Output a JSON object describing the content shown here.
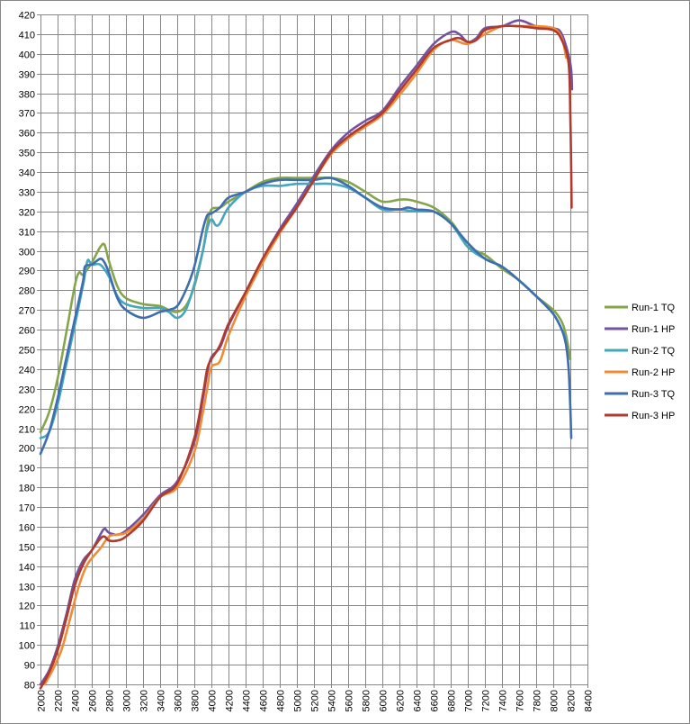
{
  "chart_data": {
    "type": "line",
    "title": "",
    "xlabel": "",
    "ylabel": "",
    "xlim": [
      2000,
      8400
    ],
    "ylim": [
      80,
      420
    ],
    "x_ticks": [
      2000,
      2200,
      2400,
      2600,
      2800,
      3000,
      3200,
      3400,
      3600,
      3800,
      4000,
      4200,
      4400,
      4600,
      4800,
      5000,
      5200,
      5400,
      5600,
      5800,
      6000,
      6200,
      6400,
      6600,
      6800,
      7000,
      7200,
      7400,
      7600,
      7800,
      8000,
      8200,
      8400
    ],
    "y_ticks": [
      80,
      90,
      100,
      110,
      120,
      130,
      140,
      150,
      160,
      170,
      180,
      190,
      200,
      210,
      220,
      230,
      240,
      250,
      260,
      270,
      280,
      290,
      300,
      310,
      320,
      330,
      340,
      350,
      360,
      370,
      380,
      390,
      400,
      410,
      420
    ],
    "grid": true,
    "legend_position": "right",
    "series": [
      {
        "name": "Run-1 TQ",
        "color": "#86a54b",
        "points": [
          [
            2000,
            208
          ],
          [
            2100,
            218
          ],
          [
            2200,
            235
          ],
          [
            2300,
            258
          ],
          [
            2400,
            282
          ],
          [
            2450,
            289
          ],
          [
            2500,
            288
          ],
          [
            2600,
            294
          ],
          [
            2700,
            302
          ],
          [
            2750,
            303
          ],
          [
            2800,
            295
          ],
          [
            2900,
            282
          ],
          [
            3000,
            276
          ],
          [
            3200,
            273
          ],
          [
            3400,
            272
          ],
          [
            3500,
            270
          ],
          [
            3600,
            269
          ],
          [
            3700,
            272
          ],
          [
            3800,
            282
          ],
          [
            3900,
            300
          ],
          [
            3950,
            313
          ],
          [
            4000,
            321
          ],
          [
            4100,
            322
          ],
          [
            4200,
            325
          ],
          [
            4400,
            330
          ],
          [
            4600,
            335
          ],
          [
            4800,
            337
          ],
          [
            5000,
            337
          ],
          [
            5200,
            337
          ],
          [
            5400,
            337
          ],
          [
            5600,
            335
          ],
          [
            5800,
            330
          ],
          [
            6000,
            325
          ],
          [
            6200,
            326
          ],
          [
            6300,
            326
          ],
          [
            6400,
            325
          ],
          [
            6600,
            322
          ],
          [
            6800,
            315
          ],
          [
            6900,
            309
          ],
          [
            7000,
            302
          ],
          [
            7200,
            298
          ],
          [
            7400,
            291
          ],
          [
            7600,
            285
          ],
          [
            7800,
            277
          ],
          [
            8000,
            270
          ],
          [
            8100,
            264
          ],
          [
            8150,
            257
          ],
          [
            8200,
            245
          ]
        ]
      },
      {
        "name": "Run-1 HP",
        "color": "#7153a1",
        "points": [
          [
            2000,
            80
          ],
          [
            2100,
            87
          ],
          [
            2200,
            99
          ],
          [
            2300,
            115
          ],
          [
            2400,
            133
          ],
          [
            2500,
            143
          ],
          [
            2600,
            148
          ],
          [
            2700,
            156
          ],
          [
            2750,
            159
          ],
          [
            2800,
            157
          ],
          [
            2900,
            156
          ],
          [
            3000,
            158
          ],
          [
            3200,
            166
          ],
          [
            3400,
            176
          ],
          [
            3600,
            183
          ],
          [
            3800,
            203
          ],
          [
            3900,
            225
          ],
          [
            3950,
            238
          ],
          [
            4000,
            246
          ],
          [
            4100,
            251
          ],
          [
            4200,
            262
          ],
          [
            4400,
            279
          ],
          [
            4600,
            296
          ],
          [
            4800,
            311
          ],
          [
            5000,
            324
          ],
          [
            5200,
            338
          ],
          [
            5400,
            351
          ],
          [
            5600,
            360
          ],
          [
            5800,
            366
          ],
          [
            6000,
            371
          ],
          [
            6200,
            383
          ],
          [
            6400,
            394
          ],
          [
            6600,
            405
          ],
          [
            6800,
            411
          ],
          [
            6900,
            410
          ],
          [
            7000,
            406
          ],
          [
            7100,
            408
          ],
          [
            7200,
            413
          ],
          [
            7400,
            414
          ],
          [
            7600,
            417
          ],
          [
            7800,
            414
          ],
          [
            8000,
            413
          ],
          [
            8100,
            410
          ],
          [
            8200,
            395
          ],
          [
            8220,
            382
          ]
        ]
      },
      {
        "name": "Run-2 TQ",
        "color": "#45a6c0",
        "points": [
          [
            2000,
            205
          ],
          [
            2100,
            208
          ],
          [
            2200,
            222
          ],
          [
            2300,
            242
          ],
          [
            2400,
            262
          ],
          [
            2500,
            283
          ],
          [
            2550,
            295
          ],
          [
            2600,
            293
          ],
          [
            2700,
            293
          ],
          [
            2800,
            287
          ],
          [
            2900,
            277
          ],
          [
            3000,
            273
          ],
          [
            3200,
            271
          ],
          [
            3400,
            271
          ],
          [
            3500,
            269
          ],
          [
            3600,
            266
          ],
          [
            3700,
            270
          ],
          [
            3800,
            283
          ],
          [
            3900,
            300
          ],
          [
            3950,
            311
          ],
          [
            4000,
            316
          ],
          [
            4050,
            313
          ],
          [
            4100,
            314
          ],
          [
            4200,
            322
          ],
          [
            4400,
            330
          ],
          [
            4600,
            333
          ],
          [
            4800,
            333
          ],
          [
            5000,
            334
          ],
          [
            5200,
            334
          ],
          [
            5400,
            334
          ],
          [
            5600,
            332
          ],
          [
            5800,
            327
          ],
          [
            6000,
            321
          ],
          [
            6200,
            321
          ],
          [
            6400,
            320
          ],
          [
            6600,
            320
          ],
          [
            6800,
            314
          ],
          [
            7000,
            302
          ],
          [
            7200,
            296
          ],
          [
            7400,
            292
          ],
          [
            7600,
            285
          ],
          [
            7800,
            277
          ],
          [
            8000,
            268
          ],
          [
            8100,
            260
          ],
          [
            8150,
            255
          ]
        ]
      },
      {
        "name": "Run-2 HP",
        "color": "#f08c36",
        "points": [
          [
            2050,
            80
          ],
          [
            2150,
            88
          ],
          [
            2250,
            98
          ],
          [
            2350,
            114
          ],
          [
            2450,
            130
          ],
          [
            2550,
            141
          ],
          [
            2700,
            149
          ],
          [
            2800,
            155
          ],
          [
            2900,
            156
          ],
          [
            3000,
            157
          ],
          [
            3200,
            164
          ],
          [
            3400,
            175
          ],
          [
            3600,
            180
          ],
          [
            3800,
            198
          ],
          [
            3900,
            218
          ],
          [
            3950,
            230
          ],
          [
            4000,
            241
          ],
          [
            4100,
            244
          ],
          [
            4200,
            257
          ],
          [
            4400,
            277
          ],
          [
            4600,
            294
          ],
          [
            4800,
            309
          ],
          [
            5000,
            322
          ],
          [
            5200,
            336
          ],
          [
            5400,
            349
          ],
          [
            5600,
            357
          ],
          [
            5800,
            363
          ],
          [
            6000,
            369
          ],
          [
            6200,
            379
          ],
          [
            6400,
            390
          ],
          [
            6600,
            402
          ],
          [
            6800,
            407
          ],
          [
            7000,
            405
          ],
          [
            7200,
            410
          ],
          [
            7400,
            414
          ],
          [
            7600,
            414
          ],
          [
            7800,
            414
          ],
          [
            8000,
            413
          ],
          [
            8100,
            408
          ],
          [
            8150,
            398
          ]
        ]
      },
      {
        "name": "Run-3 TQ",
        "color": "#3e6eae",
        "points": [
          [
            2000,
            197
          ],
          [
            2100,
            208
          ],
          [
            2200,
            225
          ],
          [
            2300,
            245
          ],
          [
            2400,
            265
          ],
          [
            2500,
            285
          ],
          [
            2520,
            292
          ],
          [
            2600,
            293
          ],
          [
            2700,
            296
          ],
          [
            2750,
            294
          ],
          [
            2800,
            289
          ],
          [
            2900,
            276
          ],
          [
            3000,
            270
          ],
          [
            3200,
            266
          ],
          [
            3400,
            269
          ],
          [
            3500,
            270
          ],
          [
            3600,
            272
          ],
          [
            3700,
            280
          ],
          [
            3800,
            292
          ],
          [
            3900,
            311
          ],
          [
            3950,
            318
          ],
          [
            4000,
            319
          ],
          [
            4100,
            322
          ],
          [
            4200,
            327
          ],
          [
            4400,
            330
          ],
          [
            4600,
            334
          ],
          [
            4800,
            336
          ],
          [
            5000,
            336
          ],
          [
            5200,
            336
          ],
          [
            5400,
            337
          ],
          [
            5600,
            333
          ],
          [
            5800,
            327
          ],
          [
            6000,
            322
          ],
          [
            6200,
            321
          ],
          [
            6300,
            322
          ],
          [
            6400,
            321
          ],
          [
            6600,
            320
          ],
          [
            6800,
            314
          ],
          [
            7000,
            304
          ],
          [
            7200,
            296
          ],
          [
            7400,
            292
          ],
          [
            7600,
            285
          ],
          [
            7800,
            277
          ],
          [
            8000,
            268
          ],
          [
            8100,
            260
          ],
          [
            8150,
            252
          ],
          [
            8180,
            240
          ],
          [
            8200,
            220
          ],
          [
            8210,
            205
          ]
        ]
      },
      {
        "name": "Run-3 HP",
        "color": "#b03a2e",
        "points": [
          [
            2000,
            78
          ],
          [
            2100,
            86
          ],
          [
            2200,
            97
          ],
          [
            2300,
            113
          ],
          [
            2400,
            130
          ],
          [
            2500,
            141
          ],
          [
            2600,
            148
          ],
          [
            2700,
            154
          ],
          [
            2750,
            155
          ],
          [
            2800,
            153
          ],
          [
            2900,
            153
          ],
          [
            3000,
            155
          ],
          [
            3200,
            163
          ],
          [
            3400,
            175
          ],
          [
            3600,
            182
          ],
          [
            3800,
            205
          ],
          [
            3900,
            227
          ],
          [
            3950,
            240
          ],
          [
            4000,
            245
          ],
          [
            4100,
            252
          ],
          [
            4200,
            263
          ],
          [
            4400,
            279
          ],
          [
            4600,
            296
          ],
          [
            4800,
            310
          ],
          [
            5000,
            322
          ],
          [
            5200,
            336
          ],
          [
            5400,
            350
          ],
          [
            5600,
            358
          ],
          [
            5800,
            364
          ],
          [
            6000,
            370
          ],
          [
            6200,
            381
          ],
          [
            6400,
            392
          ],
          [
            6600,
            403
          ],
          [
            6800,
            407
          ],
          [
            6900,
            408
          ],
          [
            7000,
            406
          ],
          [
            7100,
            407
          ],
          [
            7200,
            412
          ],
          [
            7400,
            414
          ],
          [
            7600,
            414
          ],
          [
            7800,
            413
          ],
          [
            8000,
            412
          ],
          [
            8100,
            407
          ],
          [
            8180,
            395
          ],
          [
            8200,
            368
          ],
          [
            8210,
            340
          ],
          [
            8215,
            322
          ]
        ]
      }
    ]
  }
}
